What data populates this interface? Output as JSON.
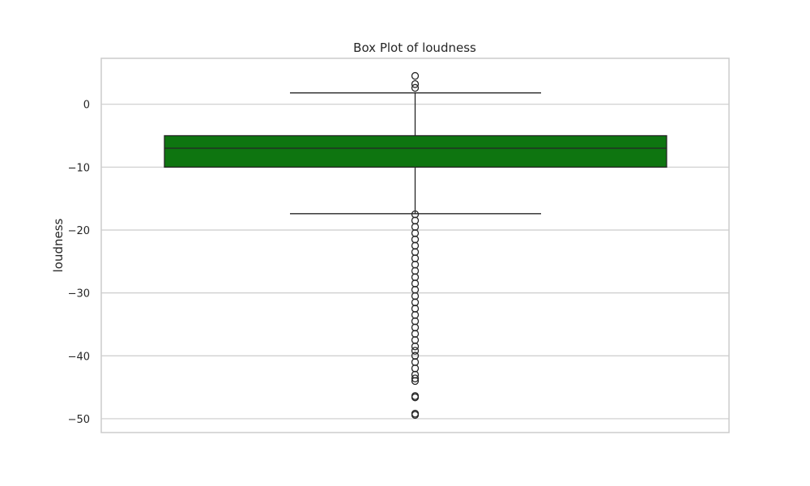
{
  "chart_data": {
    "type": "box",
    "title": "Box Plot of loudness",
    "xlabel": "",
    "ylabel": "loudness",
    "ylim": [
      -52.2,
      7.3
    ],
    "yticks": [
      0,
      -10,
      -20,
      -30,
      -40,
      -50
    ],
    "ytick_labels": [
      "0",
      "−10",
      "−20",
      "−30",
      "−40",
      "−50"
    ],
    "grid": "horizontal",
    "box_color": "#0e7510",
    "stats": {
      "whisker_low": -17.4,
      "q1": -10.0,
      "median": -7.0,
      "q3": -5.0,
      "whisker_high": 1.8
    },
    "outliers_high": [
      4.5,
      3.2,
      2.6
    ],
    "outliers_low": [
      -17.5,
      -18.5,
      -19.5,
      -20.5,
      -21.5,
      -22.5,
      -23.5,
      -24.5,
      -25.5,
      -26.5,
      -27.5,
      -28.5,
      -29.5,
      -30.5,
      -31.5,
      -32.5,
      -33.5,
      -34.5,
      -35.5,
      -36.5,
      -37.5,
      -38.5,
      -39.2,
      -40.0,
      -41.0,
      -42.0,
      -43.0,
      -43.6,
      -44.0,
      -46.4,
      -46.6,
      -49.2,
      -49.4
    ]
  }
}
